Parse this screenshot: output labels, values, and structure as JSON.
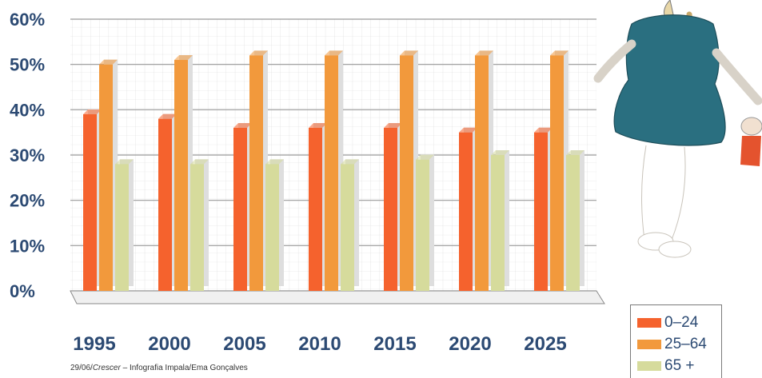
{
  "chart_data": {
    "type": "bar",
    "categories": [
      "1995",
      "2000",
      "2005",
      "2010",
      "2015",
      "2020",
      "2025"
    ],
    "series": [
      {
        "name": "0-24",
        "values": [
          39,
          38,
          36,
          36,
          36,
          35,
          35
        ],
        "color": "#f5622d"
      },
      {
        "name": "25-64",
        "values": [
          50,
          51,
          52,
          52,
          52,
          52,
          52
        ],
        "color": "#f2993c"
      },
      {
        "name": "65 +",
        "values": [
          28,
          28,
          28,
          28,
          29,
          30,
          30
        ],
        "color": "#d6db9c"
      }
    ],
    "yticks": [
      "0%",
      "10%",
      "20%",
      "30%",
      "40%",
      "50%",
      "60%"
    ],
    "ylim": [
      0,
      60
    ],
    "grid": true,
    "legend_position": "bottom-right"
  },
  "credit": {
    "date": "29/06/",
    "publication": "Crescer",
    "rest": " – Infografia Impala/Ema Gonçalves"
  },
  "legend": [
    "0–24",
    "25–64",
    "65 +"
  ],
  "illustration": "child-in-dress-holding-doll"
}
